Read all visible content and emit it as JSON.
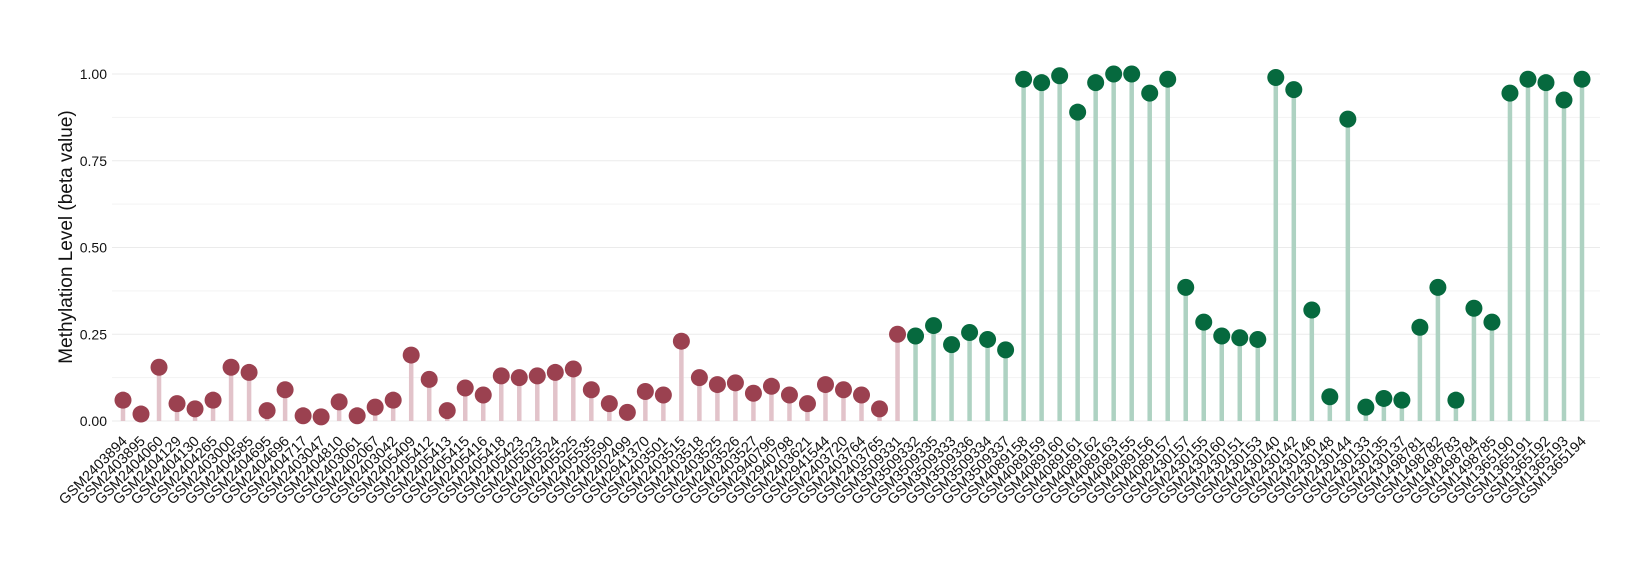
{
  "chart_data": {
    "type": "lollipop",
    "ylabel": "Methylation Level (beta value)",
    "xlabel": "",
    "ylim": [
      0,
      1.0
    ],
    "y_ticks": [
      0.0,
      0.25,
      0.5,
      0.75,
      1.0
    ],
    "y_tick_labels": [
      "0.00",
      "0.25",
      "0.50",
      "0.75",
      "1.00"
    ],
    "grid": true,
    "legend": "none",
    "colors": {
      "group1_point": "#9B4150",
      "group1_stem": "#E2C3CA",
      "group2_point": "#06693E",
      "group2_stem": "#AED2C2",
      "grid": "#EBEBEB"
    },
    "series": [
      {
        "categories": [
          "GSM2403894",
          "GSM2403895",
          "GSM2404060",
          "GSM2404129",
          "GSM2404130",
          "GSM2404265",
          "GSM2403000",
          "GSM2404585",
          "GSM2404695",
          "GSM2404696",
          "GSM2404717",
          "GSM2403047",
          "GSM2404810",
          "GSM2403061",
          "GSM2402067",
          "GSM2403042",
          "GSM2405409",
          "GSM2405412",
          "GSM2405413",
          "GSM2405415",
          "GSM2405416",
          "GSM2405418",
          "GSM2405423",
          "GSM2405523",
          "GSM2405524",
          "GSM2405525",
          "GSM2405535",
          "GSM2405590",
          "GSM2402499",
          "GSM2941370",
          "GSM2403501",
          "GSM2403515",
          "GSM2403518",
          "GSM2403525",
          "GSM2403526",
          "GSM2403527",
          "GSM2940796",
          "GSM2940798",
          "GSM2403621",
          "GSM2941544",
          "GSM2403720",
          "GSM2403764",
          "GSM2403765",
          "GSM3509331"
        ],
        "values": [
          0.06,
          0.02,
          0.155,
          0.05,
          0.035,
          0.06,
          0.155,
          0.14,
          0.03,
          0.09,
          0.015,
          0.012,
          0.055,
          0.015,
          0.04,
          0.06,
          0.19,
          0.12,
          0.03,
          0.095,
          0.075,
          0.13,
          0.125,
          0.13,
          0.14,
          0.15,
          0.09,
          0.05,
          0.025,
          0.085,
          0.075,
          0.23,
          0.125,
          0.105,
          0.11,
          0.08,
          0.1,
          0.075,
          0.05,
          0.105,
          0.09,
          0.075,
          0.035,
          0.25
        ]
      },
      {
        "categories": [
          "GSM3509332",
          "GSM3509335",
          "GSM3509333",
          "GSM3509336",
          "GSM3509334",
          "GSM3509337",
          "GSM4089158",
          "GSM4089159",
          "GSM4089160",
          "GSM4089161",
          "GSM4089162",
          "GSM4089163",
          "GSM4089155",
          "GSM4089156",
          "GSM4089157",
          "GSM2430157",
          "GSM2430155",
          "GSM2430160",
          "GSM2430151",
          "GSM2430153",
          "GSM2430140",
          "GSM2430142",
          "GSM2430146",
          "GSM2430148",
          "GSM2430144",
          "GSM2430133",
          "GSM2430135",
          "GSM2430137",
          "GSM1498781",
          "GSM1498782",
          "GSM1498783",
          "GSM1498784",
          "GSM1498785",
          "GSM1365190",
          "GSM1365191",
          "GSM1365192",
          "GSM1365193",
          "GSM1365194"
        ],
        "values": [
          0.245,
          0.275,
          0.22,
          0.255,
          0.235,
          0.205,
          0.985,
          0.975,
          0.995,
          0.89,
          0.975,
          1.0,
          1.0,
          0.945,
          0.985,
          0.385,
          0.285,
          0.245,
          0.24,
          0.235,
          0.99,
          0.955,
          0.32,
          0.07,
          0.87,
          0.04,
          0.065,
          0.06,
          0.27,
          0.385,
          0.06,
          0.325,
          0.285,
          0.945,
          0.985,
          0.975,
          0.925,
          0.985
        ]
      }
    ]
  }
}
